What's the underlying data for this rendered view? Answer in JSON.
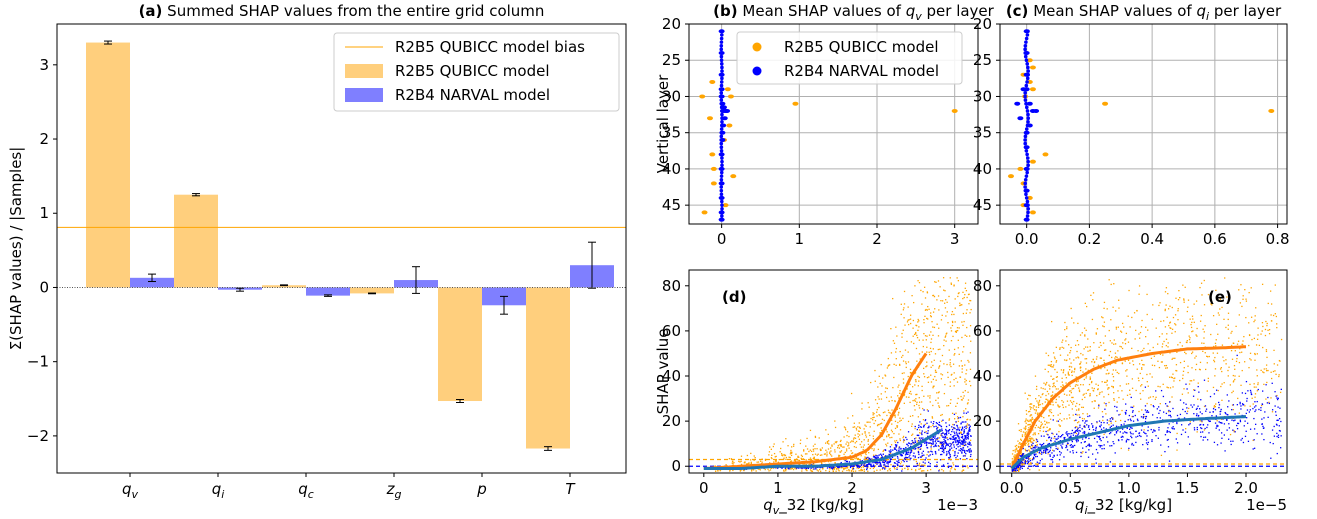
{
  "colors": {
    "qubicc": "#ffa500",
    "qubicc_bar": "#ffcf7d",
    "narval": "#0000ff",
    "narval_bar": "#7f7fff",
    "fit_qubicc": "#ff7f0e",
    "fit_narval": "#1f77b4",
    "error_bar": "#000000",
    "grid": "#b0b0b0"
  },
  "chart_data": [
    {
      "id": "a",
      "type": "bar",
      "title": "(a) Summed SHAP values from the entire grid column",
      "title_bold": "(a)",
      "title_rest": " Summed SHAP values from the entire grid column",
      "ylabel": "Σ(SHAP values) / |Samples|",
      "xlabel": "",
      "categories": [
        "q_v",
        "q_i",
        "q_c",
        "z_g",
        "p",
        "T"
      ],
      "category_labels": [
        {
          "base": "q",
          "sub": "v"
        },
        {
          "base": "q",
          "sub": "i"
        },
        {
          "base": "q",
          "sub": "c"
        },
        {
          "base": "z",
          "sub": "g"
        },
        {
          "base": "p",
          "sub": ""
        },
        {
          "base": "T",
          "sub": ""
        }
      ],
      "ylim": [
        -2.5,
        3.55
      ],
      "yticks": [
        -2,
        -1,
        0,
        1,
        2,
        3
      ],
      "ytick_labels": [
        "−2",
        "−1",
        "0",
        "1",
        "2",
        "3"
      ],
      "series": [
        {
          "name": "R2B5 QUBICC model",
          "values": [
            3.3,
            1.25,
            0.03,
            -0.08,
            -1.53,
            -2.17
          ],
          "errors": [
            0.02,
            0.015,
            0.005,
            0.005,
            0.02,
            0.025
          ]
        },
        {
          "name": "R2B4 NARVAL model",
          "values": [
            0.13,
            -0.03,
            -0.11,
            0.1,
            -0.24,
            0.3
          ],
          "errors": [
            0.05,
            0.02,
            0.01,
            0.18,
            0.12,
            0.31
          ]
        }
      ],
      "hline": {
        "name": "R2B5 QUBICC model bias",
        "y": 0.81
      },
      "legend": {
        "placement": "upper right",
        "entries": [
          "R2B5 QUBICC model bias",
          "R2B5 QUBICC model",
          "R2B4 NARVAL model"
        ]
      },
      "grid": false
    },
    {
      "id": "b",
      "type": "scatter",
      "title_bold": "(b)",
      "title_rest": " Mean SHAP values of ",
      "title_var": {
        "base": "q",
        "sub": "v"
      },
      "title_tail": " per layer",
      "ylabel": "Vertical layer",
      "xlim": [
        -0.42,
        3.3
      ],
      "ylim": [
        47.6,
        20
      ],
      "xticks": [
        0,
        1,
        2,
        3
      ],
      "xtick_labels": [
        "0",
        "1",
        "2",
        "3"
      ],
      "yticks": [
        20,
        25,
        30,
        35,
        40,
        45
      ],
      "ytick_labels": [
        "20",
        "25",
        "30",
        "35",
        "40",
        "45"
      ],
      "series": [
        {
          "name": "R2B5 QUBICC model",
          "x": [
            -0.25,
            -0.12,
            0.08,
            0.05,
            0.95,
            0.12,
            -0.15,
            0.1,
            0.03,
            -0.12,
            0.15,
            -0.1,
            -0.1,
            0.05,
            -0.22,
            3.0
          ],
          "y": [
            30,
            28,
            29,
            32,
            31,
            30,
            33,
            34,
            36,
            38,
            41,
            40,
            42,
            45,
            46,
            32
          ]
        },
        {
          "name": "R2B4 NARVAL model",
          "x": [
            0,
            0,
            0,
            0,
            0,
            0.01,
            0.02,
            0.03,
            0.05,
            0.07,
            0.04,
            0.02,
            0.01,
            0.01,
            0,
            0,
            0,
            0,
            0,
            0
          ],
          "y": [
            21,
            24,
            27,
            29,
            30,
            31,
            32,
            31.5,
            32,
            32,
            33,
            34,
            35,
            36,
            38,
            40,
            42,
            44,
            46,
            47
          ]
        }
      ],
      "legend": {
        "placement": "upper right",
        "entries": [
          "R2B5 QUBICC model",
          "R2B4 NARVAL model"
        ]
      },
      "grid": true
    },
    {
      "id": "c",
      "type": "scatter",
      "title_bold": "(c)",
      "title_rest": " Mean SHAP values of ",
      "title_var": {
        "base": "q",
        "sub": "i"
      },
      "title_tail": " per layer",
      "xlim": [
        -0.085,
        0.83
      ],
      "ylim": [
        47.6,
        20
      ],
      "xticks": [
        0,
        0.2,
        0.4,
        0.6,
        0.8
      ],
      "xtick_labels": [
        "0.0",
        "0.2",
        "0.4",
        "0.6",
        "0.8"
      ],
      "yticks": [
        20,
        25,
        30,
        35,
        40,
        45
      ],
      "ytick_labels": [
        "20",
        "25",
        "30",
        "35",
        "40",
        "45"
      ],
      "series": [
        {
          "name": "R2B5 QUBICC model",
          "x": [
            0.01,
            0.02,
            -0.01,
            0.01,
            -0.005,
            0.25,
            0.78,
            0.02,
            0.06,
            0.02,
            -0.02,
            -0.01,
            -0.05,
            0.01,
            0.02,
            -0.01
          ],
          "y": [
            25,
            26,
            27,
            28,
            30,
            31,
            32,
            29,
            38,
            39,
            40,
            42,
            41,
            44,
            46,
            45
          ]
        },
        {
          "name": "R2B4 NARVAL model",
          "x": [
            0,
            0,
            0,
            0,
            -0.01,
            -0.03,
            -0.02,
            0.02,
            0.03,
            0.01,
            0.01,
            0,
            0,
            0,
            0,
            0,
            0
          ],
          "y": [
            21,
            24,
            27,
            29,
            29,
            31,
            33,
            32,
            32,
            31,
            34,
            35,
            37,
            40,
            43,
            45,
            47
          ]
        }
      ],
      "grid": true
    },
    {
      "id": "d",
      "type": "scatter",
      "label": "(d)",
      "ylabel": "SHAP value",
      "xlabel": {
        "base": "q",
        "sub": "v",
        "tail": "_32 [kg/kg]"
      },
      "x_offset_text": "1e−3",
      "xlim": [
        -0.2,
        3.7
      ],
      "ylim": [
        -3,
        87
      ],
      "xticks": [
        0,
        1,
        2,
        3
      ],
      "xtick_labels": [
        "0",
        "1",
        "2",
        "3"
      ],
      "yticks": [
        0,
        20,
        40,
        60,
        80
      ],
      "ytick_labels": [
        "0",
        "20",
        "40",
        "60",
        "80"
      ],
      "fits": [
        {
          "series": "R2B5 QUBICC model",
          "x": [
            0,
            0.5,
            1.0,
            1.5,
            2.0,
            2.2,
            2.4,
            2.6,
            2.8,
            3.0
          ],
          "y": [
            -1,
            0,
            1,
            2,
            4,
            7,
            14,
            26,
            40,
            50
          ]
        },
        {
          "series": "R2B4 NARVAL model",
          "x": [
            0,
            0.5,
            1.0,
            1.5,
            2.0,
            2.4,
            2.8,
            3.2
          ],
          "y": [
            -1,
            -1,
            0,
            0,
            1,
            3,
            8,
            16
          ]
        }
      ],
      "bias_lines": [
        {
          "series": "R2B5 QUBICC model",
          "y": 3
        },
        {
          "series": "R2B4 NARVAL model",
          "y": 0
        }
      ],
      "grid": false
    },
    {
      "id": "e",
      "type": "scatter",
      "label": "(e)",
      "xlabel": {
        "base": "q",
        "sub": "i",
        "tail": "_32 [kg/kg]"
      },
      "x_offset_text": "1e−5",
      "xlim": [
        -0.1,
        2.35
      ],
      "ylim": [
        -3,
        87
      ],
      "xticks": [
        0,
        0.5,
        1.0,
        1.5,
        2.0
      ],
      "xtick_labels": [
        "0.0",
        "0.5",
        "1.0",
        "1.5",
        "2.0"
      ],
      "yticks": [
        0,
        20,
        40,
        60,
        80
      ],
      "ytick_labels": [
        "0",
        "20",
        "40",
        "60",
        "80"
      ],
      "fits": [
        {
          "series": "R2B5 QUBICC model",
          "x": [
            0,
            0.1,
            0.2,
            0.35,
            0.5,
            0.7,
            0.9,
            1.2,
            1.5,
            1.8,
            2.0
          ],
          "y": [
            -1,
            10,
            20,
            30,
            37,
            43,
            47,
            50,
            52,
            52.5,
            53
          ]
        },
        {
          "series": "R2B4 NARVAL model",
          "x": [
            0,
            0.1,
            0.25,
            0.5,
            0.75,
            1.0,
            1.3,
            1.6,
            2.0
          ],
          "y": [
            -1,
            4,
            8,
            12,
            15,
            18,
            20,
            21,
            22
          ]
        }
      ],
      "bias_lines": [
        {
          "series": "R2B5 QUBICC model",
          "y": 1
        },
        {
          "series": "R2B4 NARVAL model",
          "y": 0
        }
      ],
      "grid": false
    }
  ]
}
